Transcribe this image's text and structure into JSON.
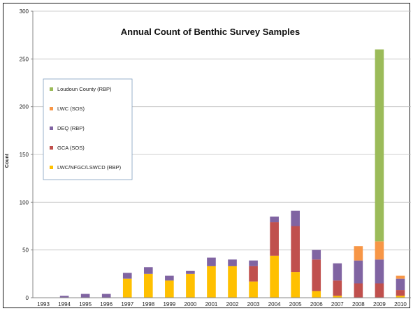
{
  "chart_data": {
    "type": "bar",
    "stacked": true,
    "title": "Annual Count of Benthic Survey Samples",
    "ylabel": "Count",
    "xlabel": "",
    "ylim": [
      0,
      300
    ],
    "yticks": [
      0,
      50,
      100,
      150,
      200,
      250,
      300
    ],
    "grid": true,
    "legend_position": "left",
    "categories": [
      "1993",
      "1994",
      "1995",
      "1996",
      "1997",
      "1998",
      "1999",
      "2000",
      "2001",
      "2002",
      "2003",
      "2004",
      "2005",
      "2006",
      "2007",
      "2008",
      "2009",
      "2010"
    ],
    "series": [
      {
        "name": "LWC/NFGC/LSWCD (RBP)",
        "color": "#ffc000",
        "values": [
          0,
          0,
          0,
          0,
          20,
          25,
          18,
          25,
          33,
          33,
          17,
          44,
          27,
          7,
          2,
          0,
          0,
          2
        ]
      },
      {
        "name": "GCA (SOS)",
        "color": "#c0504d",
        "values": [
          0,
          0,
          0,
          0,
          0,
          0,
          0,
          0,
          0,
          0,
          16,
          35,
          48,
          33,
          16,
          15,
          15,
          6
        ]
      },
      {
        "name": "DEQ (RBP)",
        "color": "#8064a2",
        "values": [
          0,
          2,
          4,
          4,
          6,
          7,
          5,
          3,
          9,
          7,
          6,
          6,
          16,
          10,
          18,
          24,
          25,
          12
        ]
      },
      {
        "name": "LWC (SOS)",
        "color": "#f79646",
        "values": [
          0,
          0,
          0,
          0,
          0,
          0,
          0,
          0,
          0,
          0,
          0,
          0,
          0,
          0,
          0,
          15,
          19,
          3
        ]
      },
      {
        "name": "Loudoun County (RBP)",
        "color": "#9bbb59",
        "values": [
          0,
          0,
          0,
          0,
          0,
          0,
          0,
          0,
          0,
          0,
          0,
          0,
          0,
          0,
          0,
          0,
          201,
          0
        ]
      }
    ],
    "legend_order": [
      "Loudoun County (RBP)",
      "LWC (SOS)",
      "DEQ (RBP)",
      "GCA (SOS)",
      "LWC/NFGC/LSWCD (RBP)"
    ]
  }
}
